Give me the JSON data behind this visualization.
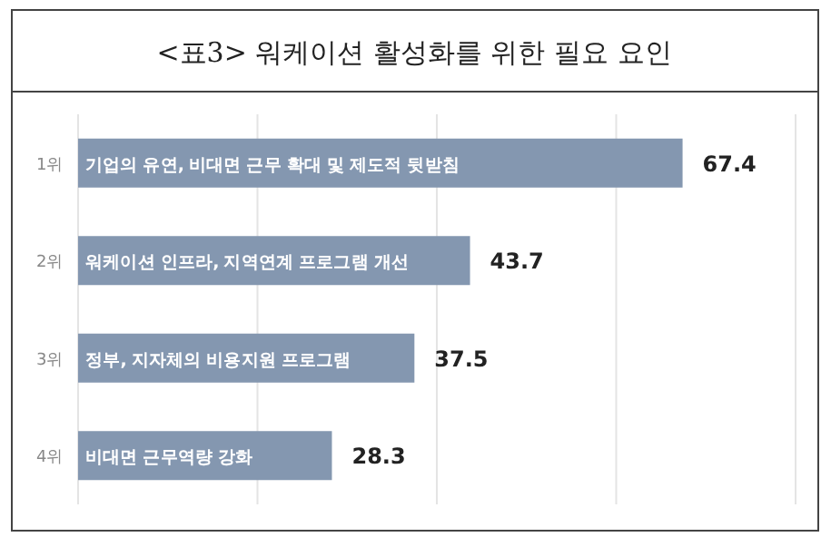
{
  "chart_data": {
    "type": "bar",
    "orientation": "horizontal",
    "title": "<표3> 워케이션 활성화를 위한 필요 요인",
    "categories": [
      "1위",
      "2위",
      "3위",
      "4위"
    ],
    "values": [
      67.4,
      43.7,
      37.5,
      28.3
    ],
    "color": "#8497b0",
    "xlim": [
      0,
      80
    ],
    "xticks": [
      {
        "value": 0,
        "label": null
      },
      {
        "value": 20,
        "label": null
      },
      {
        "value": 40,
        "label": null
      },
      {
        "value": 60,
        "label": null
      },
      {
        "value": 80,
        "label": null
      }
    ],
    "tick_labels": "y",
    "grid": "x",
    "data_labels": true,
    "annotations": [
      "기업의 유연, 비대면 근무 확대 및 제도적 뒷받침",
      "워케이션 인프라, 지역연계 프로그램 개선",
      "정부, 지자체의 비용지원 프로그램",
      "비대면 근무역량 강화"
    ]
  }
}
